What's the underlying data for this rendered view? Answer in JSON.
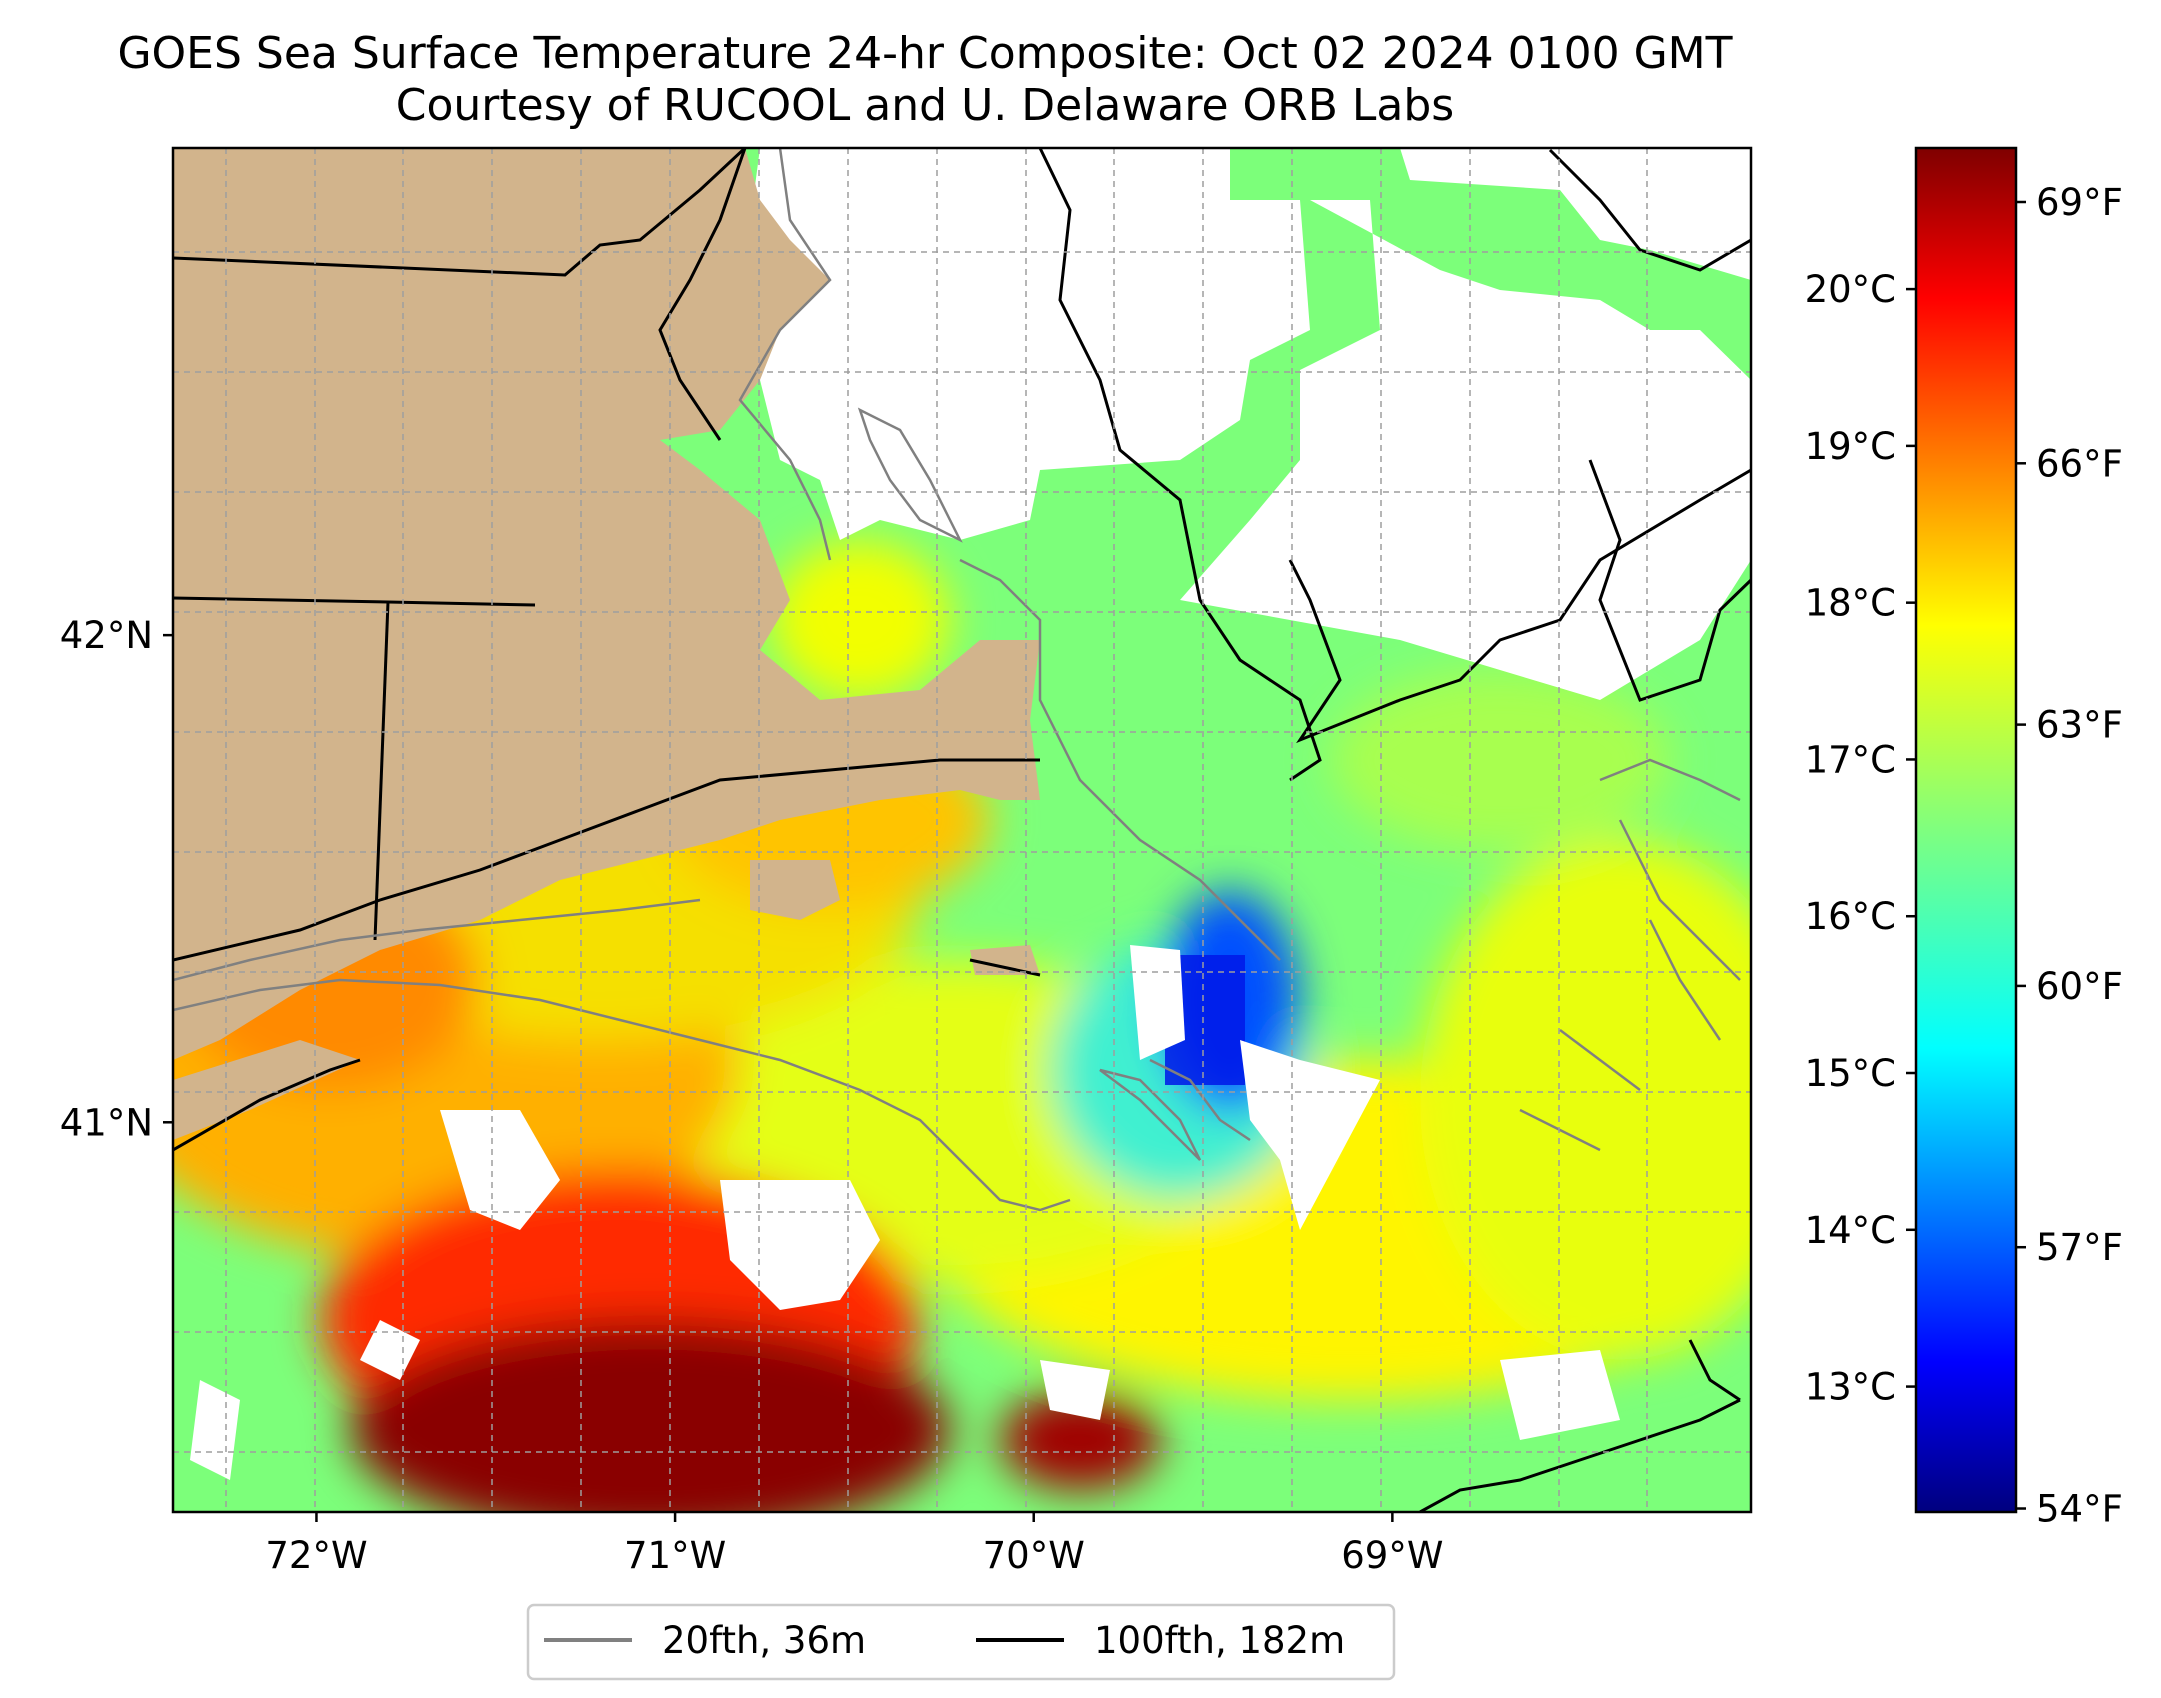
{
  "title": {
    "line1": "GOES Sea Surface Temperature 24-hr Composite: Oct 02 2024 0100 GMT",
    "line2": "Courtesy of RUCOOL and U. Delaware ORB Labs"
  },
  "map": {
    "extent": {
      "lon_min": -72.4,
      "lon_max": -68.0,
      "lat_min": 40.2,
      "lat_max": 43.0
    },
    "lon_ticks": [
      {
        "value": -72,
        "label": "72°W"
      },
      {
        "value": -71,
        "label": "71°W"
      },
      {
        "value": -70,
        "label": "70°W"
      },
      {
        "value": -69,
        "label": "69°W"
      }
    ],
    "lat_ticks": [
      {
        "value": 42,
        "label": "42°N"
      },
      {
        "value": 41,
        "label": "41°N"
      }
    ],
    "grid": true,
    "colors": {
      "land": "#D2B48C",
      "no_data": "#FFFFFF",
      "coast": "#000000",
      "isobath_20": "#808080",
      "isobath_100": "#000000"
    }
  },
  "colorbar": {
    "cmap": "jet",
    "range_c": [
      12.2,
      20.9
    ],
    "celsius_ticks": [
      "20°C",
      "19°C",
      "18°C",
      "17°C",
      "16°C",
      "15°C",
      "14°C",
      "13°C"
    ],
    "celsius_values": [
      20,
      19,
      18,
      17,
      16,
      15,
      14,
      13
    ],
    "fahrenheit_ticks": [
      "69°F",
      "66°F",
      "63°F",
      "60°F",
      "57°F",
      "54°F"
    ],
    "fahrenheit_values": [
      69,
      66,
      63,
      60,
      57,
      54
    ]
  },
  "legend": {
    "items": [
      {
        "label": "20fth, 36m",
        "color": "#808080"
      },
      {
        "label": "100fth, 182m",
        "color": "#000000"
      }
    ]
  }
}
